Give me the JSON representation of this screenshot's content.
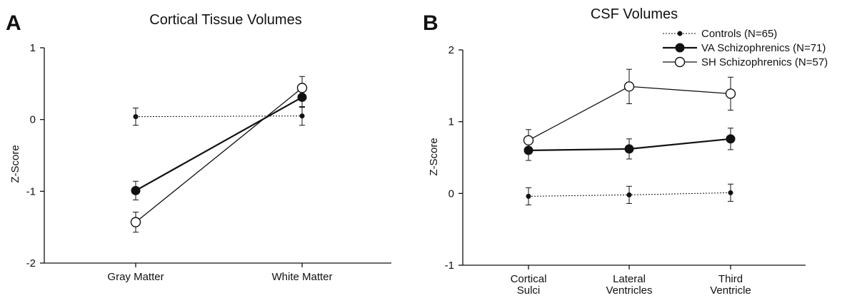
{
  "panels": {
    "a": {
      "letter": "A"
    },
    "b": {
      "letter": "B"
    }
  },
  "legend": {
    "entries": [
      {
        "label": "Controls (N=65)",
        "marker": "small-filled",
        "line": "dotted"
      },
      {
        "label": "VA Schizophrenics (N=71)",
        "marker": "large-filled",
        "line": "solid-thick"
      },
      {
        "label": "SH Schizophrenics (N=57)",
        "marker": "open-circle",
        "line": "solid"
      }
    ]
  },
  "chart_data": [
    {
      "type": "line",
      "title": "Cortical Tissue Volumes",
      "ylabel": "Z-Score",
      "xlabel": "",
      "categories": [
        "Gray Matter",
        "White Matter"
      ],
      "ylim": [
        -2,
        1
      ],
      "yticks": [
        -2,
        -1,
        0,
        1
      ],
      "series": [
        {
          "name": "Controls (N=65)",
          "style": "dotted",
          "marker": "small-filled",
          "values": [
            0.04,
            0.05
          ],
          "err": [
            0.12,
            0.13
          ]
        },
        {
          "name": "VA Schizophrenics (N=71)",
          "style": "solid-thick",
          "marker": "large-filled",
          "values": [
            -0.99,
            0.31
          ],
          "err": [
            0.13,
            0.14
          ]
        },
        {
          "name": "SH Schizophrenics (N=57)",
          "style": "solid",
          "marker": "open-circle",
          "values": [
            -1.43,
            0.44
          ],
          "err": [
            0.14,
            0.16
          ]
        }
      ]
    },
    {
      "type": "line",
      "title": "CSF Volumes",
      "ylabel": "Z-Score",
      "xlabel": "",
      "categories": [
        [
          "Cortical",
          "Sulci"
        ],
        [
          "Lateral",
          "Ventricles"
        ],
        [
          "Third",
          "Ventricle"
        ]
      ],
      "ylim": [
        -1,
        2
      ],
      "yticks": [
        -1,
        0,
        1,
        2
      ],
      "series": [
        {
          "name": "Controls (N=65)",
          "style": "dotted",
          "marker": "small-filled",
          "values": [
            -0.04,
            -0.02,
            0.01
          ],
          "err": [
            0.12,
            0.12,
            0.12
          ]
        },
        {
          "name": "VA Schizophrenics (N=71)",
          "style": "solid-thick",
          "marker": "large-filled",
          "values": [
            0.6,
            0.62,
            0.76
          ],
          "err": [
            0.14,
            0.14,
            0.15
          ]
        },
        {
          "name": "SH Schizophrenics (N=57)",
          "style": "solid",
          "marker": "open-circle",
          "values": [
            0.74,
            1.49,
            1.39
          ],
          "err": [
            0.15,
            0.24,
            0.23
          ]
        }
      ]
    }
  ]
}
